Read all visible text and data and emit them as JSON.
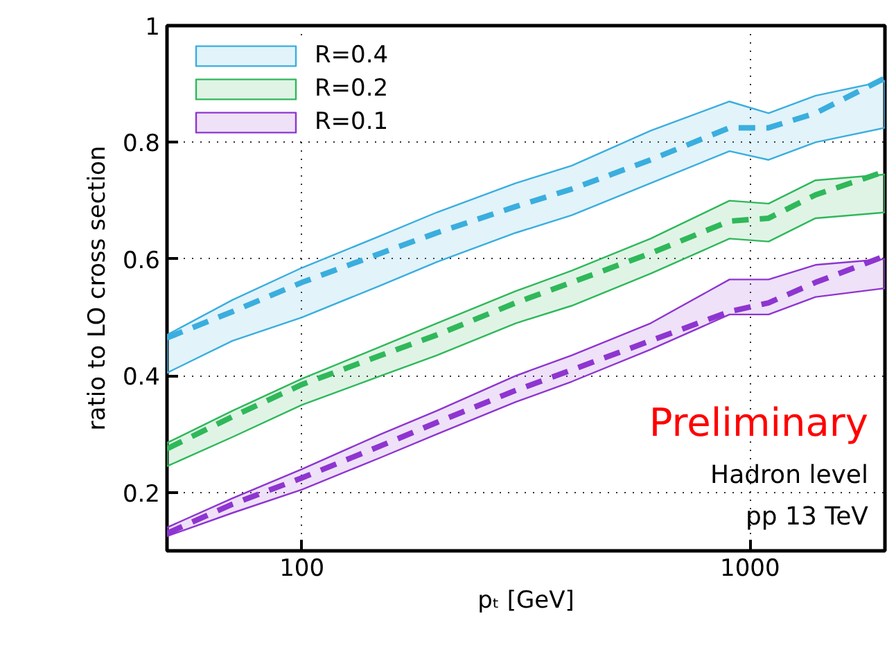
{
  "chart_data": {
    "type": "line",
    "xlabel": "pₜ [GeV]",
    "ylabel": "ratio to LO cross section",
    "x": [
      50,
      70,
      100,
      150,
      200,
      300,
      400,
      600,
      900,
      1100,
      1400,
      2000
    ],
    "series": [
      {
        "name": "R=0.4",
        "color": "#3aaede",
        "values": [
          0.465,
          0.51,
          0.56,
          0.61,
          0.645,
          0.69,
          0.72,
          0.77,
          0.825,
          0.825,
          0.85,
          0.91
        ],
        "lower": [
          0.405,
          0.46,
          0.5,
          0.555,
          0.595,
          0.645,
          0.675,
          0.73,
          0.785,
          0.77,
          0.8,
          0.825
        ],
        "upper": [
          0.47,
          0.53,
          0.585,
          0.64,
          0.68,
          0.73,
          0.76,
          0.82,
          0.87,
          0.85,
          0.88,
          0.905
        ]
      },
      {
        "name": "R=0.2",
        "color": "#2fb85a",
        "values": [
          0.275,
          0.33,
          0.385,
          0.435,
          0.47,
          0.525,
          0.56,
          0.61,
          0.665,
          0.67,
          0.71,
          0.75
        ],
        "lower": [
          0.245,
          0.295,
          0.35,
          0.4,
          0.435,
          0.49,
          0.52,
          0.575,
          0.635,
          0.63,
          0.67,
          0.68
        ],
        "upper": [
          0.285,
          0.34,
          0.395,
          0.45,
          0.49,
          0.545,
          0.58,
          0.635,
          0.7,
          0.695,
          0.735,
          0.745
        ]
      },
      {
        "name": "R=0.1",
        "color": "#8e35d0",
        "values": [
          0.13,
          0.18,
          0.225,
          0.28,
          0.32,
          0.375,
          0.41,
          0.46,
          0.51,
          0.525,
          0.56,
          0.605
        ],
        "lower": [
          0.125,
          0.165,
          0.205,
          0.26,
          0.3,
          0.355,
          0.39,
          0.445,
          0.505,
          0.505,
          0.535,
          0.55
        ],
        "upper": [
          0.14,
          0.19,
          0.24,
          0.3,
          0.34,
          0.4,
          0.435,
          0.49,
          0.565,
          0.565,
          0.59,
          0.6
        ]
      }
    ],
    "xlim": [
      50,
      2000
    ],
    "xticks": [
      100,
      1000
    ],
    "ylim": [
      0.1,
      1
    ],
    "yticks": [
      0.2,
      0.4,
      0.6,
      0.8,
      {
        "value": 1,
        "label": "1"
      }
    ],
    "log": "x",
    "grid": true,
    "legend": "top left",
    "line_style": "dashed",
    "marker": "none",
    "annotations": [
      "Preliminary",
      "Hadron level",
      "pp 13 TeV"
    ]
  }
}
